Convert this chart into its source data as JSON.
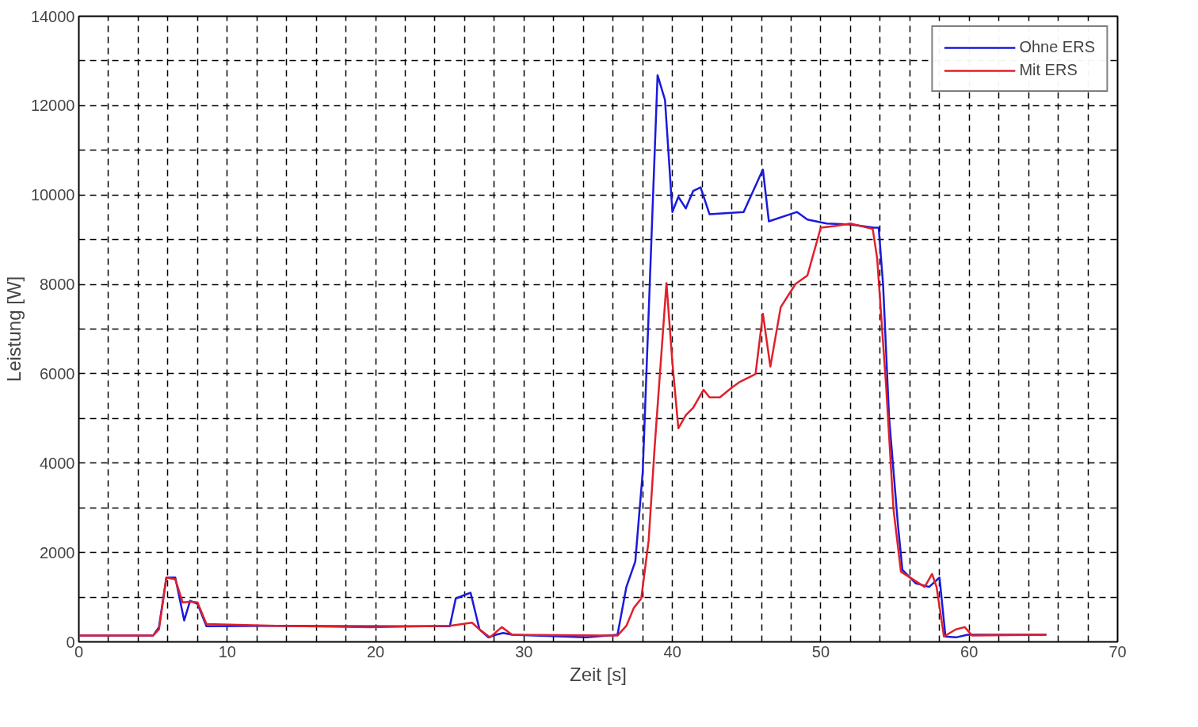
{
  "chart_data": {
    "type": "line",
    "xlabel": "Zeit [s]",
    "ylabel": "Leistung [W]",
    "xlim": [
      0,
      70
    ],
    "ylim": [
      0,
      14000
    ],
    "xticks": [
      0,
      {
        "value": 2,
        "label": null
      },
      {
        "value": 4,
        "label": null
      },
      {
        "value": 6,
        "label": null
      },
      {
        "value": 8,
        "label": null
      },
      10,
      {
        "value": 12,
        "label": null
      },
      {
        "value": 14,
        "label": null
      },
      {
        "value": 16,
        "label": null
      },
      {
        "value": 18,
        "label": null
      },
      20,
      {
        "value": 22,
        "label": null
      },
      {
        "value": 24,
        "label": null
      },
      {
        "value": 26,
        "label": null
      },
      {
        "value": 28,
        "label": null
      },
      30,
      {
        "value": 32,
        "label": null
      },
      {
        "value": 34,
        "label": null
      },
      {
        "value": 36,
        "label": null
      },
      {
        "value": 38,
        "label": null
      },
      40,
      {
        "value": 42,
        "label": null
      },
      {
        "value": 44,
        "label": null
      },
      {
        "value": 46,
        "label": null
      },
      {
        "value": 48,
        "label": null
      },
      50,
      {
        "value": 52,
        "label": null
      },
      {
        "value": 54,
        "label": null
      },
      {
        "value": 56,
        "label": null
      },
      {
        "value": 58,
        "label": null
      },
      60,
      {
        "value": 62,
        "label": null
      },
      {
        "value": 64,
        "label": null
      },
      {
        "value": 66,
        "label": null
      },
      {
        "value": 68,
        "label": null
      },
      70
    ],
    "yticks": [
      0,
      {
        "value": 1000,
        "label": null
      },
      2000,
      {
        "value": 3000,
        "label": null
      },
      4000,
      {
        "value": 5000,
        "label": null
      },
      6000,
      {
        "value": 7000,
        "label": null
      },
      8000,
      {
        "value": 9000,
        "label": null
      },
      10000,
      {
        "value": 11000,
        "label": null
      },
      12000,
      {
        "value": 13000,
        "label": null
      },
      14000
    ],
    "grid": true,
    "legend": "top right",
    "marker": "none",
    "series": [
      {
        "name": "Ohne ERS",
        "color": "#1a1adc",
        "x": [
          0,
          5,
          5.4,
          5.9,
          6.5,
          7.1,
          7.5,
          8,
          8.6,
          13.3,
          19.6,
          25,
          25.4,
          26,
          26.4,
          27,
          27.6,
          28.1,
          28.6,
          29.2,
          34.2,
          36.3,
          36.9,
          37.5,
          38,
          39,
          39.5,
          40,
          40.4,
          40.9,
          41.4,
          41.9,
          42.5,
          44.8,
          46.1,
          46.5,
          48.4,
          49.1,
          50.4,
          52,
          53.6,
          53.9,
          54.2,
          54.6,
          55.2,
          55.5,
          56.4,
          57.3,
          58,
          58.4,
          59.1,
          59.9,
          65.2
        ],
        "values": [
          140,
          140,
          330,
          1440,
          1440,
          480,
          920,
          850,
          350,
          360,
          350,
          350,
          970,
          1050,
          1100,
          280,
          100,
          160,
          200,
          160,
          100,
          160,
          1230,
          1800,
          3800,
          12680,
          12130,
          9620,
          9960,
          9700,
          10090,
          10170,
          9570,
          9620,
          10570,
          9410,
          9620,
          9450,
          9360,
          9340,
          9270,
          9270,
          7980,
          5030,
          2610,
          1610,
          1310,
          1230,
          1440,
          120,
          100,
          160,
          160
        ]
      },
      {
        "name": "Mit ERS",
        "color": "#e0202a",
        "x": [
          0,
          5,
          5.4,
          5.9,
          6.5,
          7,
          7.5,
          8,
          8.6,
          13.3,
          19.6,
          25,
          26.5,
          27,
          27.7,
          28.5,
          29.2,
          36.3,
          36.9,
          37.4,
          37.9,
          38.4,
          38.8,
          39.6,
          40,
          40.4,
          40.9,
          41.4,
          42.1,
          42.5,
          43.2,
          44,
          44.5,
          45.6,
          46.1,
          46.6,
          47.3,
          48.3,
          49.1,
          50,
          51,
          52,
          53.5,
          53.8,
          54.4,
          54.9,
          55.4,
          57,
          57.5,
          57.8,
          58.3,
          59.1,
          59.7,
          60.2,
          65.2
        ],
        "values": [
          140,
          140,
          280,
          1440,
          1400,
          880,
          900,
          880,
          400,
          360,
          330,
          360,
          430,
          280,
          100,
          330,
          160,
          140,
          360,
          760,
          970,
          2270,
          4340,
          8030,
          6250,
          4780,
          5070,
          5240,
          5640,
          5470,
          5470,
          5690,
          5810,
          5990,
          7340,
          6160,
          7490,
          8010,
          8200,
          9270,
          9310,
          9360,
          9240,
          8580,
          5730,
          2960,
          1570,
          1230,
          1520,
          1230,
          120,
          280,
          330,
          140,
          160
        ]
      }
    ]
  }
}
